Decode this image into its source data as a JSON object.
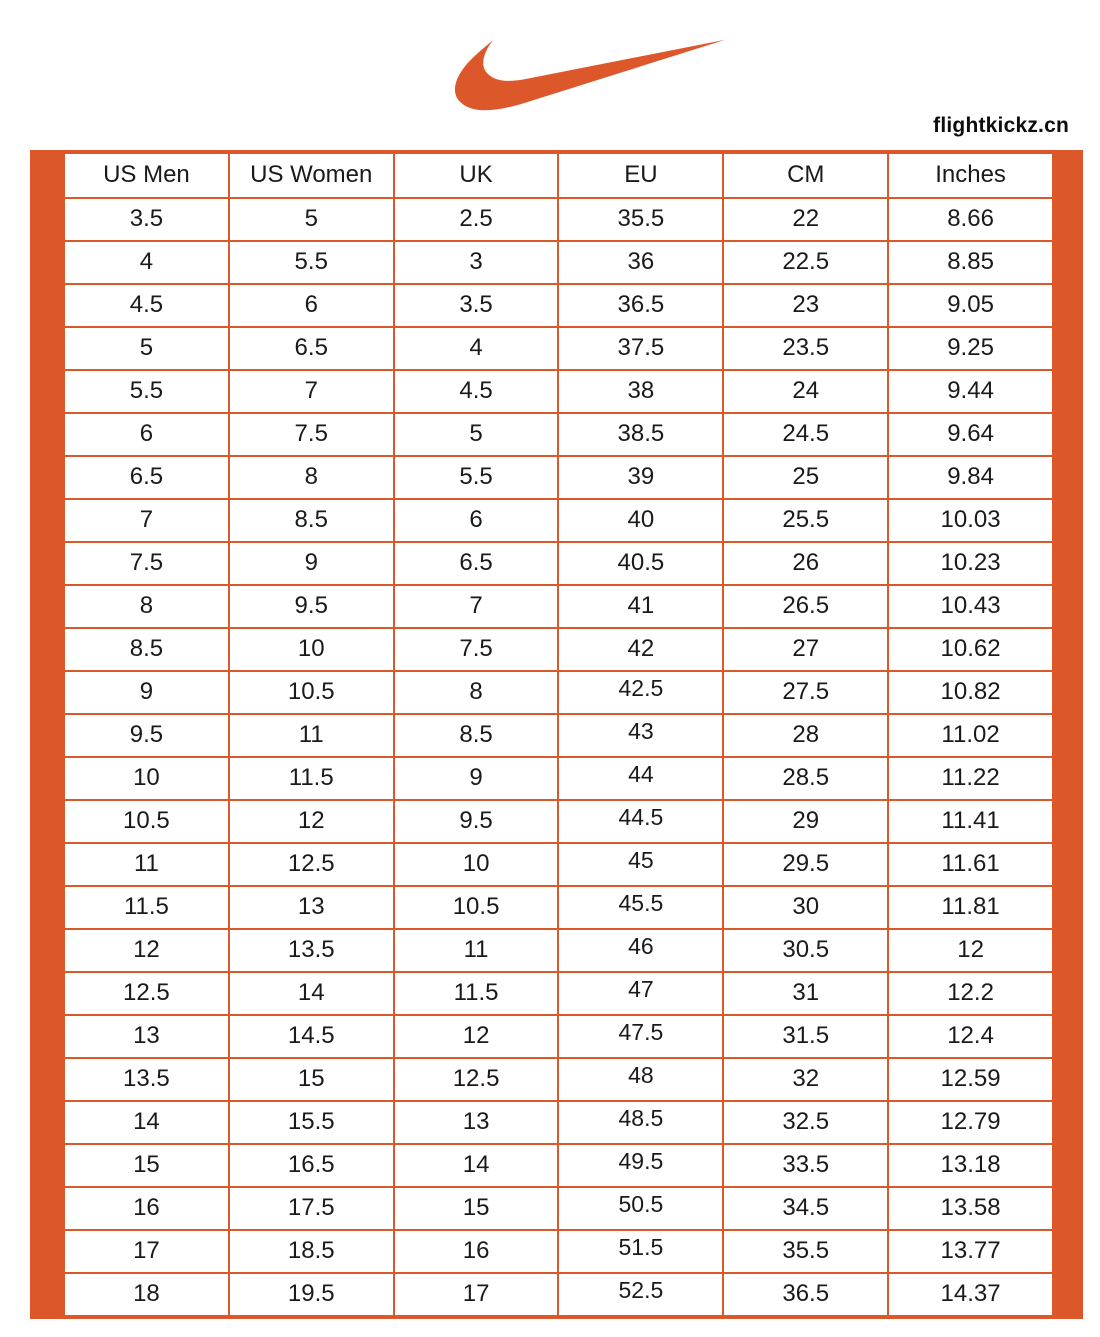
{
  "page": {
    "watermark": "flightkickz.cn"
  },
  "logo": {
    "icon": "nike-swoosh-icon"
  },
  "colors": {
    "accent": "#DC582B",
    "text": "#1A1A1A",
    "background": "#FFFFFF"
  },
  "table": {
    "headers": [
      "US Men",
      "US Women",
      "UK",
      "EU",
      "CM",
      "Inches"
    ],
    "eu_column_index": 3,
    "eu_raised_from_row": 11,
    "rows": [
      [
        "3.5",
        "5",
        "2.5",
        "35.5",
        "22",
        "8.66"
      ],
      [
        "4",
        "5.5",
        "3",
        "36",
        "22.5",
        "8.85"
      ],
      [
        "4.5",
        "6",
        "3.5",
        "36.5",
        "23",
        "9.05"
      ],
      [
        "5",
        "6.5",
        "4",
        "37.5",
        "23.5",
        "9.25"
      ],
      [
        "5.5",
        "7",
        "4.5",
        "38",
        "24",
        "9.44"
      ],
      [
        "6",
        "7.5",
        "5",
        "38.5",
        "24.5",
        "9.64"
      ],
      [
        "6.5",
        "8",
        "5.5",
        "39",
        "25",
        "9.84"
      ],
      [
        "7",
        "8.5",
        "6",
        "40",
        "25.5",
        "10.03"
      ],
      [
        "7.5",
        "9",
        "6.5",
        "40.5",
        "26",
        "10.23"
      ],
      [
        "8",
        "9.5",
        "7",
        "41",
        "26.5",
        "10.43"
      ],
      [
        "8.5",
        "10",
        "7.5",
        "42",
        "27",
        "10.62"
      ],
      [
        "9",
        "10.5",
        "8",
        "42.5",
        "27.5",
        "10.82"
      ],
      [
        "9.5",
        "11",
        "8.5",
        "43",
        "28",
        "11.02"
      ],
      [
        "10",
        "11.5",
        "9",
        "44",
        "28.5",
        "11.22"
      ],
      [
        "10.5",
        "12",
        "9.5",
        "44.5",
        "29",
        "11.41"
      ],
      [
        "11",
        "12.5",
        "10",
        "45",
        "29.5",
        "11.61"
      ],
      [
        "11.5",
        "13",
        "10.5",
        "45.5",
        "30",
        "11.81"
      ],
      [
        "12",
        "13.5",
        "11",
        "46",
        "30.5",
        "12"
      ],
      [
        "12.5",
        "14",
        "11.5",
        "47",
        "31",
        "12.2"
      ],
      [
        "13",
        "14.5",
        "12",
        "47.5",
        "31.5",
        "12.4"
      ],
      [
        "13.5",
        "15",
        "12.5",
        "48",
        "32",
        "12.59"
      ],
      [
        "14",
        "15.5",
        "13",
        "48.5",
        "32.5",
        "12.79"
      ],
      [
        "15",
        "16.5",
        "14",
        "49.5",
        "33.5",
        "13.18"
      ],
      [
        "16",
        "17.5",
        "15",
        "50.5",
        "34.5",
        "13.58"
      ],
      [
        "17",
        "18.5",
        "16",
        "51.5",
        "35.5",
        "13.77"
      ],
      [
        "18",
        "19.5",
        "17",
        "52.5",
        "36.5",
        "14.37"
      ]
    ]
  }
}
